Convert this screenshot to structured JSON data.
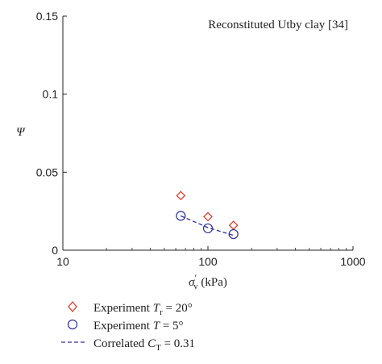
{
  "chart_data": {
    "type": "scatter",
    "annotation": "Reconstituted Utby clay [34]",
    "xlabel": {
      "main": "σ",
      "sub": "v",
      "prime": "′",
      "unit": " (kPa)"
    },
    "ylabel": "Ψ",
    "x_scale": "log",
    "xlim": [
      10,
      1000
    ],
    "ylim": [
      0,
      0.15
    ],
    "x_ticks": [
      10,
      100,
      1000
    ],
    "x_tick_labels": [
      "10",
      "100",
      "1000"
    ],
    "y_ticks": [
      0,
      0.05,
      0.1,
      0.15
    ],
    "y_tick_labels": [
      "0",
      "0.05",
      "0.1",
      "0.15"
    ],
    "grid": false,
    "legend_position": "bottom-left, below axes",
    "series": [
      {
        "name": "Experiment T_r = 20°",
        "marker": "diamond",
        "color": "#e0301e",
        "x": [
          65,
          100,
          150
        ],
        "y": [
          0.035,
          0.0215,
          0.016
        ]
      },
      {
        "name": "Experiment T = 5°",
        "marker": "circle",
        "color": "#2e2e9e",
        "x": [
          65,
          100,
          150
        ],
        "y": [
          0.022,
          0.014,
          0.0103
        ]
      },
      {
        "name": "Correlated C_T = 0.31",
        "marker": "dashed-line",
        "color": "#2e2e9e",
        "x": [
          65,
          100,
          150
        ],
        "y": [
          0.022,
          0.0145,
          0.0095
        ]
      }
    ],
    "legend": [
      {
        "pre": "Experiment ",
        "var": "T",
        "sub": "r",
        "post": " = 20°"
      },
      {
        "pre": "Experiment ",
        "var": "T",
        "sub": "",
        "post": " = 5°"
      },
      {
        "pre": "Correlated ",
        "var": "C",
        "sub": "T",
        "post": " = 0.31"
      }
    ]
  }
}
